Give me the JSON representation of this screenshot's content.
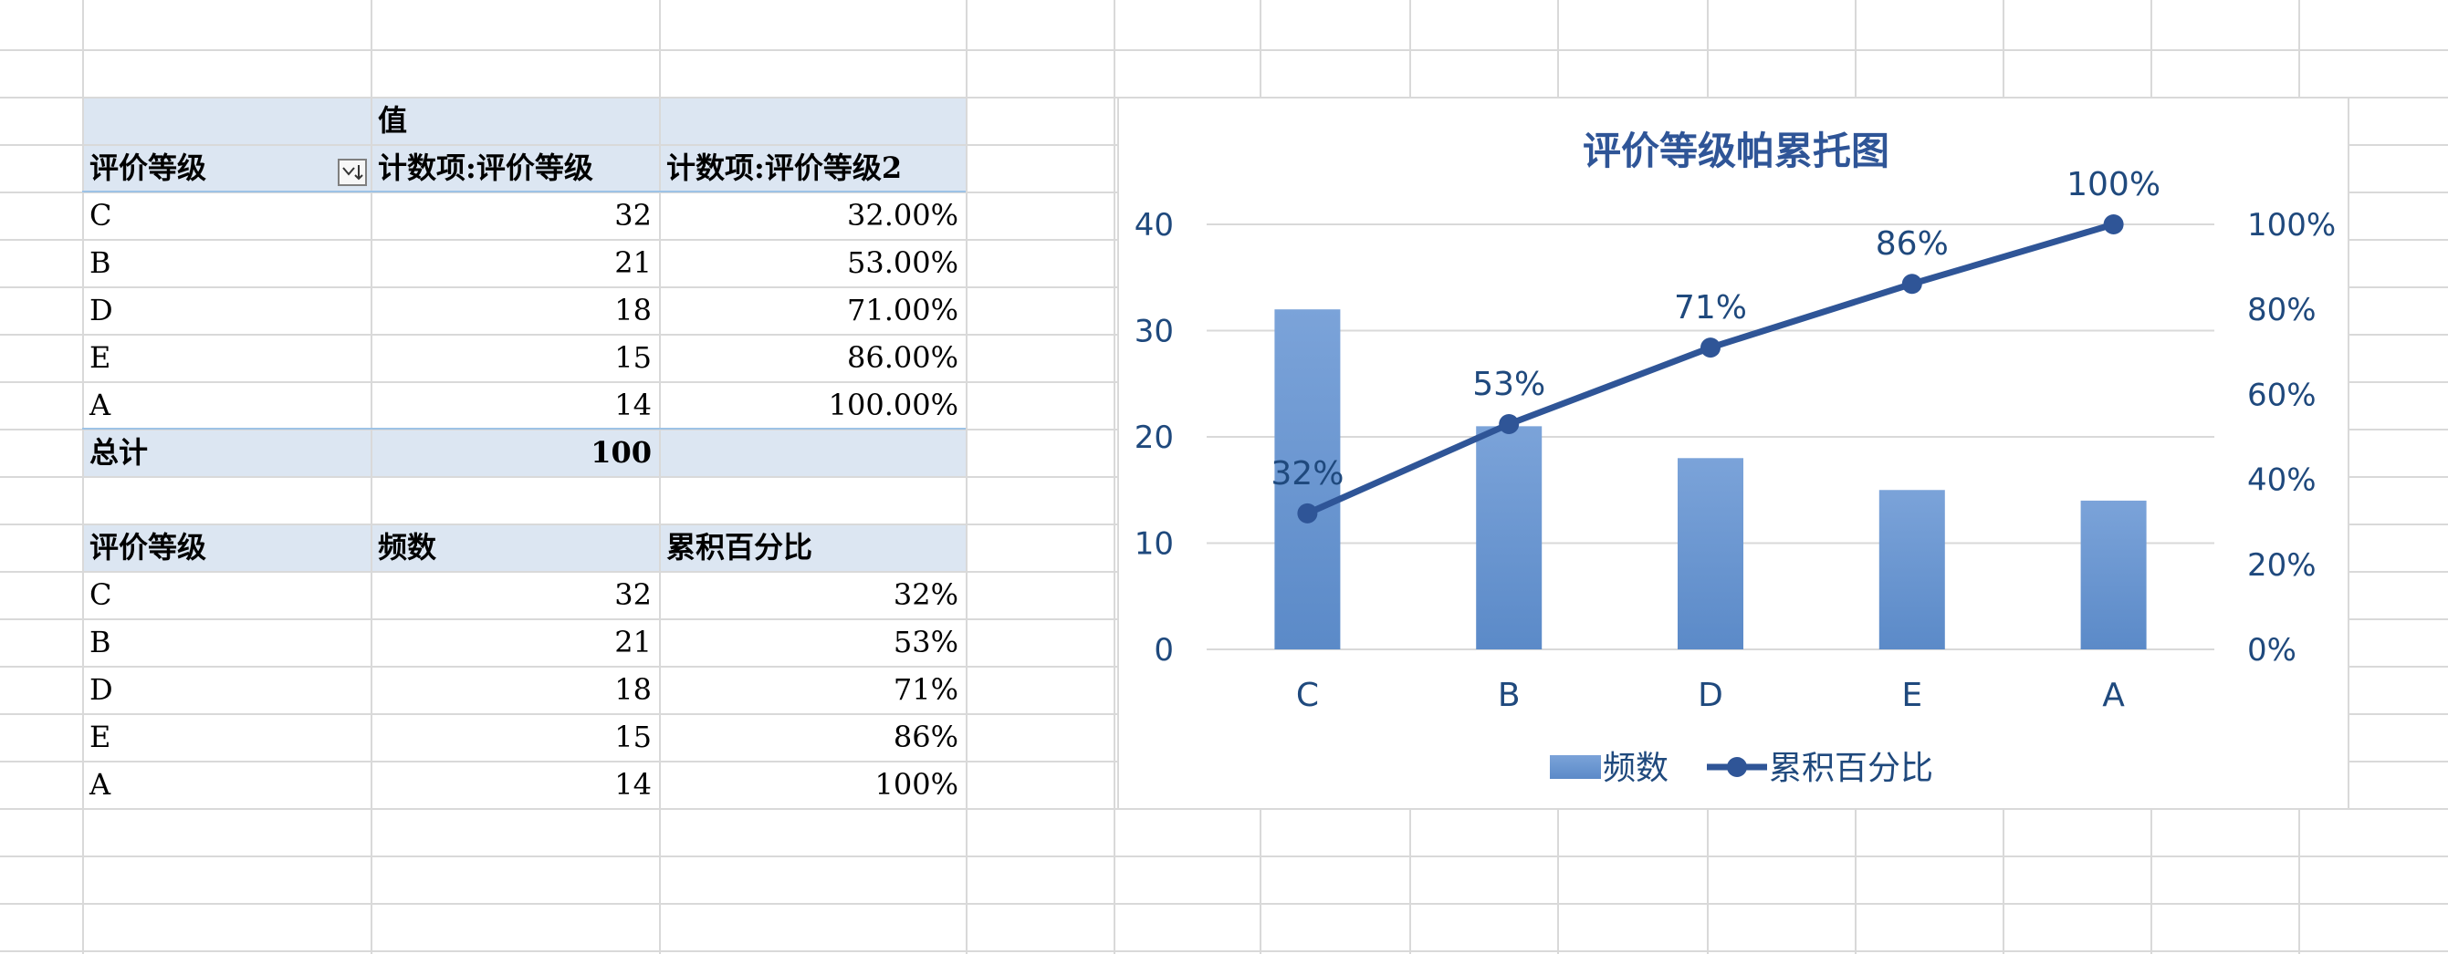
{
  "pivot_table": {
    "header_values_label": "值",
    "row_header": "评价等级",
    "col1_header": "计数项:评价等级",
    "col2_header": "计数项:评价等级2",
    "rows": [
      {
        "grade": "C",
        "count": "32",
        "pct": "32.00%"
      },
      {
        "grade": "B",
        "count": "21",
        "pct": "53.00%"
      },
      {
        "grade": "D",
        "count": "18",
        "pct": "71.00%"
      },
      {
        "grade": "E",
        "count": "15",
        "pct": "86.00%"
      },
      {
        "grade": "A",
        "count": "14",
        "pct": "100.00%"
      }
    ],
    "total_label": "总计",
    "total_value": "100"
  },
  "summary_table": {
    "headers": [
      "评价等级",
      "频数",
      "累积百分比"
    ],
    "rows": [
      [
        "C",
        "32",
        "32%"
      ],
      [
        "B",
        "21",
        "53%"
      ],
      [
        "D",
        "18",
        "71%"
      ],
      [
        "E",
        "15",
        "86%"
      ],
      [
        "A",
        "14",
        "100%"
      ]
    ]
  },
  "colors": {
    "header_fill": "#dce6f2",
    "bar_fill": "#5b8ac8",
    "line": "#2f5597",
    "axis_text": "#1f497d",
    "gridline": "#d9d9d9"
  },
  "chart_data": {
    "type": "bar",
    "title": "评价等级帕累托图",
    "categories": [
      "C",
      "B",
      "D",
      "E",
      "A"
    ],
    "series": [
      {
        "name": "频数",
        "type": "bar",
        "axis": "left",
        "values": [
          32,
          21,
          18,
          15,
          14
        ]
      },
      {
        "name": "累积百分比",
        "type": "line",
        "axis": "right",
        "values": [
          0.32,
          0.53,
          0.71,
          0.86,
          1.0
        ],
        "data_labels": [
          "32%",
          "53%",
          "71%",
          "86%",
          "100%"
        ]
      }
    ],
    "y_left": {
      "min": 0,
      "max": 40,
      "ticks": [
        "0",
        "10",
        "20",
        "30",
        "40"
      ]
    },
    "y_right": {
      "min": 0,
      "max": 1,
      "ticks": [
        "0%",
        "20%",
        "40%",
        "60%",
        "80%",
        "100%"
      ]
    },
    "grid": true,
    "legend": "bottom"
  }
}
